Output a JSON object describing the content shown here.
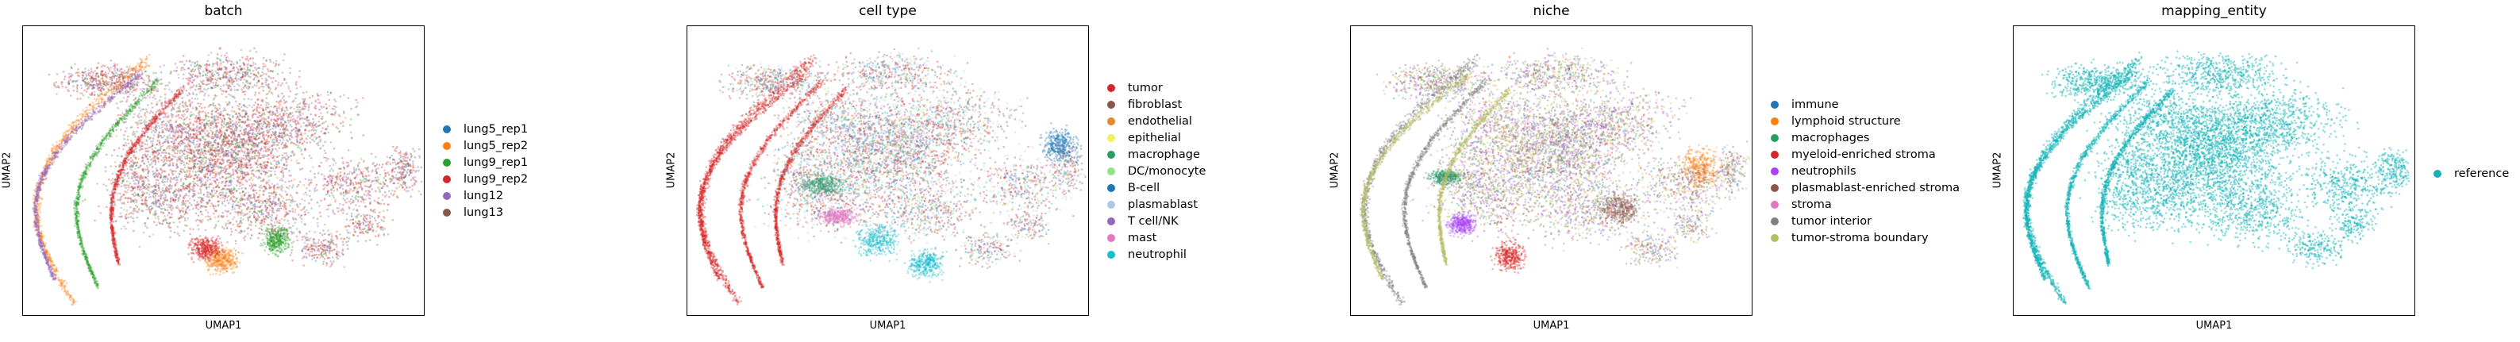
{
  "chart_data": [
    {
      "type": "scatter",
      "title": "batch",
      "xlabel": "UMAP1",
      "ylabel": "UMAP2",
      "grid": false,
      "legend_position": "right",
      "series": [
        {
          "name": "lung5_rep1",
          "color": "#1f77b4"
        },
        {
          "name": "lung5_rep2",
          "color": "#ff7f0e"
        },
        {
          "name": "lung9_rep1",
          "color": "#2ca02c"
        },
        {
          "name": "lung9_rep2",
          "color": "#d62728"
        },
        {
          "name": "lung12",
          "color": "#9467bd"
        },
        {
          "name": "lung13",
          "color": "#8c564b"
        }
      ]
    },
    {
      "type": "scatter",
      "title": "cell type",
      "xlabel": "UMAP1",
      "ylabel": "UMAP2",
      "grid": false,
      "legend_position": "right",
      "series": [
        {
          "name": "tumor",
          "color": "#d62728"
        },
        {
          "name": "fibroblast",
          "color": "#8c564b"
        },
        {
          "name": "endothelial",
          "color": "#e7862a"
        },
        {
          "name": "epithelial",
          "color": "#f2f25a"
        },
        {
          "name": "macrophage",
          "color": "#279e68"
        },
        {
          "name": "DC/monocyte",
          "color": "#98df8a"
        },
        {
          "name": "B-cell",
          "color": "#1f77b4"
        },
        {
          "name": "plasmablast",
          "color": "#aec7e8"
        },
        {
          "name": "T cell/NK",
          "color": "#9467bd"
        },
        {
          "name": "mast",
          "color": "#e377c2"
        },
        {
          "name": "neutrophil",
          "color": "#17becf"
        }
      ]
    },
    {
      "type": "scatter",
      "title": "niche",
      "xlabel": "UMAP1",
      "ylabel": "UMAP2",
      "grid": false,
      "legend_position": "right",
      "series": [
        {
          "name": "immune",
          "color": "#1f77b4"
        },
        {
          "name": "lymphoid structure",
          "color": "#ff7f0e"
        },
        {
          "name": "macrophages",
          "color": "#279e68"
        },
        {
          "name": "myeloid-enriched stroma",
          "color": "#d62728"
        },
        {
          "name": "neutrophils",
          "color": "#aa40fc"
        },
        {
          "name": "plasmablast-enriched stroma",
          "color": "#8c564b"
        },
        {
          "name": "stroma",
          "color": "#e377c2"
        },
        {
          "name": "tumor interior",
          "color": "#7f7f7f"
        },
        {
          "name": "tumor-stroma boundary",
          "color": "#b5bd61"
        }
      ]
    },
    {
      "type": "scatter",
      "title": "mapping_entity",
      "xlabel": "UMAP1",
      "ylabel": "UMAP2",
      "grid": false,
      "legend_position": "right",
      "series": [
        {
          "name": "reference",
          "color": "#17b3b8"
        }
      ]
    }
  ]
}
